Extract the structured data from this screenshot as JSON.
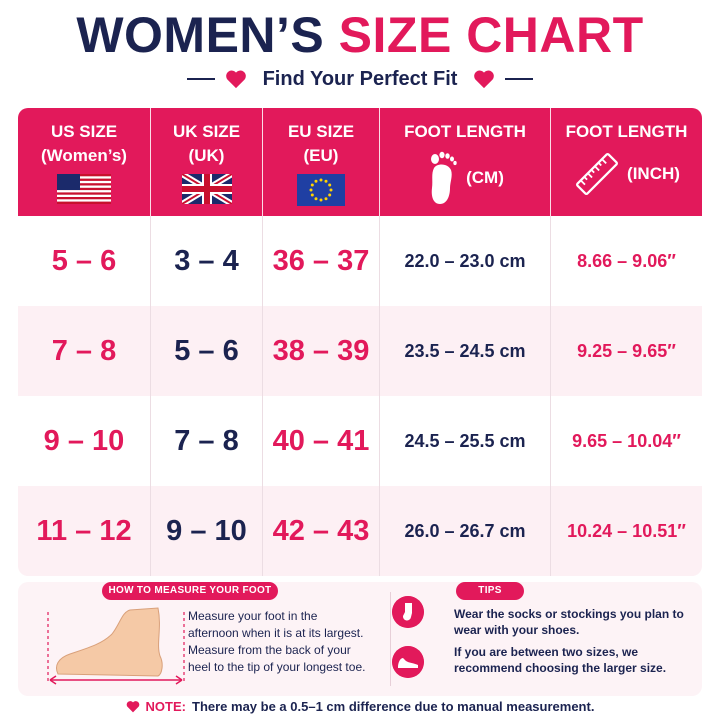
{
  "title": {
    "part1": "WOMEN’S",
    "part2": "SIZE CHART"
  },
  "subtitle": "Find Your Perfect Fit",
  "colors": {
    "accent": "#e2195b",
    "navy": "#1b2350",
    "alt_row": "#fdf0f4"
  },
  "headers": {
    "us": {
      "line1": "US SIZE",
      "line2": "(Women’s)",
      "icon": "us-flag-icon"
    },
    "uk": {
      "line1": "UK SIZE",
      "line2": "(UK)",
      "icon": "uk-flag-icon"
    },
    "eu": {
      "line1": "EU SIZE",
      "line2": "(EU)",
      "icon": "eu-flag-icon"
    },
    "cm": {
      "line1": "FOOT LENGTH",
      "unit": "(CM)",
      "icon": "footprint-icon"
    },
    "inch": {
      "line1": "FOOT LENGTH",
      "unit": "(INCH)",
      "icon": "ruler-icon"
    }
  },
  "rows": [
    {
      "us": "5 – 6",
      "uk": "3 – 4",
      "eu": "36 – 37",
      "cm": "22.0 – 23.0 cm",
      "inch": "8.66 – 9.06″"
    },
    {
      "us": "7 – 8",
      "uk": "5 – 6",
      "eu": "38 – 39",
      "cm": "23.5 – 24.5 cm",
      "inch": "9.25 – 9.65″"
    },
    {
      "us": "9 – 10",
      "uk": "7 – 8",
      "eu": "40 – 41",
      "cm": "24.5 – 25.5 cm",
      "inch": "9.65 – 10.04″"
    },
    {
      "us": "11 – 12",
      "uk": "9 – 10",
      "eu": "42 – 43",
      "cm": "26.0 – 26.7 cm",
      "inch": "10.24 – 10.51″"
    }
  ],
  "measure": {
    "badge": "HOW TO MEASURE YOUR FOOT",
    "text": "Measure your foot in the afternoon when it is at its largest. Measure from the back of your heel to the tip of your longest toe."
  },
  "tips": {
    "badge": "TIPS",
    "tip1": "Wear the socks or stockings you plan to wear with your shoes.",
    "tip2": "If you are between two sizes, we recommend choosing the larger size."
  },
  "note": {
    "label": "NOTE:",
    "text": "There may be a 0.5–1 cm difference due to manual measurement."
  }
}
